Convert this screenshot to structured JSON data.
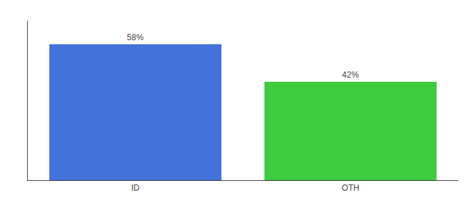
{
  "chart_data": {
    "type": "bar",
    "categories": [
      "ID",
      "OTH"
    ],
    "values": [
      58,
      42
    ],
    "value_labels": [
      "58%",
      "42%"
    ],
    "data_labels": true,
    "colors": [
      "#4472db",
      "#3dcc3d"
    ],
    "ylim": [
      0,
      68
    ],
    "tick_labels": "x",
    "grid": false
  }
}
